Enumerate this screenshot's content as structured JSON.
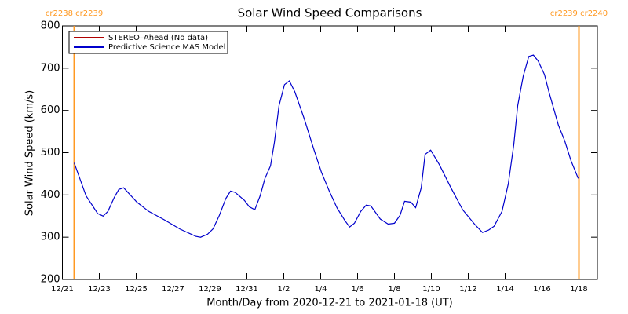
{
  "chart_data": {
    "type": "line",
    "title": "Solar Wind Speed Comparisons",
    "xlabel": "Month/Day from 2020-12-21 to 2021-01-18 (UT)",
    "ylabel": "Solar Wind Speed (km/s)",
    "xlim": [
      0,
      29
    ],
    "xticks": [
      {
        "value": 0,
        "label": "12/21"
      },
      {
        "value": 2,
        "label": "12/23"
      },
      {
        "value": 4,
        "label": "12/25"
      },
      {
        "value": 6,
        "label": "12/27"
      },
      {
        "value": 8,
        "label": "12/29"
      },
      {
        "value": 10,
        "label": "12/31"
      },
      {
        "value": 12,
        "label": "1/2"
      },
      {
        "value": 14,
        "label": "1/4"
      },
      {
        "value": 16,
        "label": "1/6"
      },
      {
        "value": 18,
        "label": "1/8"
      },
      {
        "value": 20,
        "label": "1/10"
      },
      {
        "value": 22,
        "label": "1/12"
      },
      {
        "value": 24,
        "label": "1/14"
      },
      {
        "value": 26,
        "label": "1/16"
      },
      {
        "value": 28,
        "label": "1/18"
      }
    ],
    "ylim": [
      200,
      800
    ],
    "yticks": [
      200,
      300,
      400,
      500,
      600,
      700,
      800
    ],
    "legend": "upper left",
    "x": [
      0.64,
      1.28,
      1.91,
      2.21,
      2.47,
      2.81,
      3.06,
      3.32,
      4.04,
      4.68,
      5.53,
      6.38,
      7.23,
      7.49,
      7.87,
      8.17,
      8.51,
      8.85,
      9.11,
      9.36,
      9.87,
      10.13,
      10.43,
      10.72,
      10.98,
      11.28,
      11.49,
      11.74,
      12.04,
      12.3,
      12.6,
      13.11,
      13.62,
      14.04,
      14.47,
      14.89,
      15.32,
      15.57,
      15.83,
      16.17,
      16.47,
      16.72,
      17.23,
      17.66,
      18.0,
      18.3,
      18.55,
      18.89,
      19.15,
      19.45,
      19.66,
      19.96,
      20.43,
      21.06,
      21.7,
      22.34,
      22.77,
      23.11,
      23.4,
      23.83,
      24.17,
      24.47,
      24.68,
      24.98,
      25.28,
      25.53,
      25.79,
      26.13,
      26.38,
      26.89,
      27.23,
      27.57,
      27.96
    ],
    "series": [
      {
        "name": "STEREO–Ahead (No data)",
        "color": "#b00000",
        "values": [
          null,
          null,
          null,
          null,
          null,
          null,
          null,
          null,
          null,
          null,
          null,
          null,
          null,
          null,
          null,
          null,
          null,
          null,
          null,
          null,
          null,
          null,
          null,
          null,
          null,
          null,
          null,
          null,
          null,
          null,
          null,
          null,
          null,
          null,
          null,
          null,
          null,
          null,
          null,
          null,
          null,
          null,
          null,
          null,
          null,
          null,
          null,
          null,
          null,
          null,
          null,
          null,
          null,
          null,
          null,
          null,
          null,
          null,
          null,
          null,
          null,
          null,
          null,
          null,
          null,
          null,
          null,
          null,
          null,
          null,
          null,
          null,
          null
        ]
      },
      {
        "name": "Predictive Science MAS Model",
        "color": "#0000cc",
        "values": [
          476,
          398,
          356,
          350,
          361,
          394,
          413,
          417,
          383,
          361,
          341,
          319,
          302,
          300,
          307,
          320,
          352,
          391,
          409,
          406,
          387,
          372,
          365,
          398,
          439,
          469,
          524,
          611,
          661,
          670,
          644,
          580,
          509,
          454,
          409,
          369,
          339,
          324,
          333,
          361,
          376,
          374,
          343,
          331,
          333,
          352,
          385,
          383,
          370,
          417,
          496,
          506,
          472,
          417,
          365,
          331,
          311,
          317,
          326,
          361,
          426,
          519,
          611,
          681,
          728,
          731,
          717,
          685,
          643,
          565,
          528,
          481,
          439
        ]
      }
    ],
    "annotations": [
      {
        "x": 0.64,
        "label": "cr2238 cr2239",
        "color": "#ff9922"
      },
      {
        "x": 28,
        "label": "cr2239 cr2240",
        "color": "#ff9922"
      }
    ]
  }
}
